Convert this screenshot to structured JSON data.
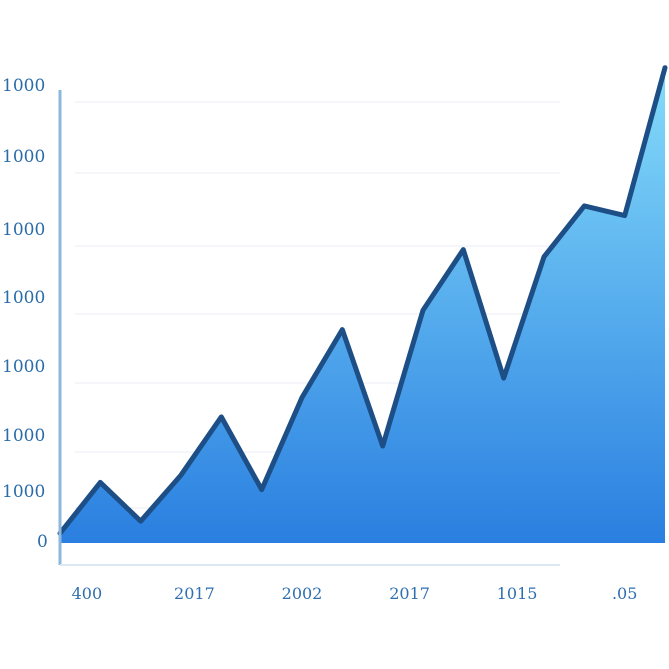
{
  "chart_data": {
    "type": "area",
    "title": "",
    "xlabel": "",
    "ylabel": "",
    "y_tick_labels": [
      "1000",
      "1000",
      "1000",
      "1000",
      "1000",
      "1000",
      "1000",
      "0"
    ],
    "x_tick_labels": [
      "400",
      "2017",
      "2002",
      "2017",
      "1015",
      ".05"
    ],
    "x_tick_positions": [
      0.5,
      2.5,
      4.5,
      6.5,
      8.5,
      10.5
    ],
    "x": [
      0,
      0.75,
      1.5,
      2.25,
      3.0,
      3.75,
      4.5,
      5.25,
      6.0,
      6.75,
      7.5,
      8.25,
      9.0,
      9.75,
      10.5,
      11.25
    ],
    "values": [
      0.2,
      1.25,
      0.45,
      1.4,
      2.6,
      1.1,
      3.0,
      4.4,
      2.0,
      4.8,
      6.05,
      3.4,
      5.9,
      6.95,
      6.75,
      9.8
    ],
    "ylim": [
      0,
      10
    ],
    "xlim": [
      0,
      11.25
    ],
    "grid": true,
    "colors": {
      "line": "#1d4f86",
      "fill_top": "#84dcfa",
      "fill_bottom": "#2a7fe0",
      "axis": "#8db8de"
    }
  }
}
